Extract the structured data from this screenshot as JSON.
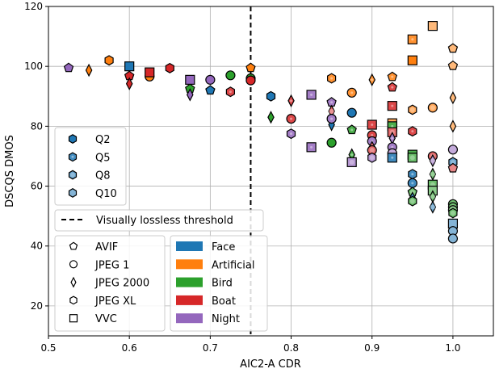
{
  "chart_data": {
    "type": "scatter",
    "xlabel": "AIC2-A CDR",
    "ylabel": "DSCQS DMOS",
    "xlim": [
      0.5,
      1.05
    ],
    "ylim": [
      10,
      120
    ],
    "xticks": [
      "0.5",
      "0.6",
      "0.7",
      "0.8",
      "0.9",
      "1.0"
    ],
    "yticks": [
      "20",
      "40",
      "60",
      "80",
      "100",
      "120"
    ],
    "grid": true,
    "threshold": {
      "x": 0.75,
      "label": "Visually lossless threshold"
    },
    "quality_legend": [
      "Q2",
      "Q5",
      "Q8",
      "Q10"
    ],
    "codec_legend": [
      {
        "key": "pentagon",
        "label": "AVIF"
      },
      {
        "key": "circle",
        "label": "JPEG 1"
      },
      {
        "key": "diamond",
        "label": "JPEG 2000"
      },
      {
        "key": "hexagon",
        "label": "JPEG XL"
      },
      {
        "key": "square",
        "label": "VVC"
      }
    ],
    "image_legend": [
      {
        "label": "Face",
        "color": "#1f77b4"
      },
      {
        "label": "Artificial",
        "color": "#ff7f0e"
      },
      {
        "label": "Bird",
        "color": "#2ca02c"
      },
      {
        "label": "Boat",
        "color": "#d62728"
      },
      {
        "label": "Night",
        "color": "#9467bd"
      }
    ],
    "points_fields": [
      "cdr",
      "dmos",
      "codec",
      "image",
      "quality"
    ],
    "points": [
      [
        0.525,
        99.5,
        "pentagon",
        "Night",
        "Q2"
      ],
      [
        0.55,
        98.7,
        "diamond",
        "Artificial",
        "Q2"
      ],
      [
        0.575,
        102,
        "hexagon",
        "Artificial",
        "Q2"
      ],
      [
        0.6,
        100,
        "square",
        "Face",
        "Q2"
      ],
      [
        0.6,
        96.8,
        "pentagon",
        "Boat",
        "Q2"
      ],
      [
        0.6,
        94.2,
        "diamond",
        "Boat",
        "Q2"
      ],
      [
        0.625,
        96.6,
        "circle",
        "Artificial",
        "Q2"
      ],
      [
        0.625,
        98,
        "square",
        "Boat",
        "Q2"
      ],
      [
        0.65,
        99.4,
        "hexagon",
        "Boat",
        "Q2"
      ],
      [
        0.675,
        92.5,
        "pentagon",
        "Bird",
        "Q2"
      ],
      [
        0.675,
        90.5,
        "diamond",
        "Night",
        "Q2"
      ],
      [
        0.675,
        95.5,
        "square",
        "Night",
        "Q2"
      ],
      [
        0.7,
        95.5,
        "circle",
        "Night",
        "Q2"
      ],
      [
        0.7,
        92,
        "pentagon",
        "Face",
        "Q2"
      ],
      [
        0.725,
        97,
        "circle",
        "Bird",
        "Q2"
      ],
      [
        0.725,
        91.5,
        "hexagon",
        "Boat",
        "Q5"
      ],
      [
        0.75,
        99.5,
        "pentagon",
        "Artificial",
        "Q2"
      ],
      [
        0.75,
        96,
        "circle",
        "Bird",
        "Q2"
      ],
      [
        0.75,
        95.3,
        "circle",
        "Boat",
        "Q2"
      ],
      [
        0.775,
        90,
        "hexagon",
        "Face",
        "Q2"
      ],
      [
        0.775,
        83,
        "diamond",
        "Bird",
        "Q2"
      ],
      [
        0.8,
        88.5,
        "diamond",
        "Boat",
        "Q5"
      ],
      [
        0.8,
        82.5,
        "circle",
        "Boat",
        "Q5"
      ],
      [
        0.8,
        77.5,
        "hexagon",
        "Night",
        "Q5"
      ],
      [
        0.825,
        90.5,
        "square",
        "Night",
        "Q5"
      ],
      [
        0.825,
        73,
        "square",
        "Night",
        "Q5"
      ],
      [
        0.85,
        96,
        "hexagon",
        "Artificial",
        "Q5"
      ],
      [
        0.85,
        88,
        "pentagon",
        "Night",
        "Q5"
      ],
      [
        0.85,
        85,
        "diamond",
        "Boat",
        "Q8"
      ],
      [
        0.85,
        80.5,
        "diamond",
        "Face",
        "Q2"
      ],
      [
        0.85,
        82.5,
        "circle",
        "Night",
        "Q5"
      ],
      [
        0.85,
        74.5,
        "circle",
        "Bird",
        "Q2"
      ],
      [
        0.875,
        91.2,
        "circle",
        "Artificial",
        "Q5"
      ],
      [
        0.875,
        84.5,
        "circle",
        "Face",
        "Q2"
      ],
      [
        0.875,
        78.8,
        "pentagon",
        "Bird",
        "Q5"
      ],
      [
        0.875,
        70.5,
        "diamond",
        "Bird",
        "Q5"
      ],
      [
        0.875,
        68,
        "square",
        "Night",
        "Q8"
      ],
      [
        0.9,
        95.5,
        "diamond",
        "Artificial",
        "Q5"
      ],
      [
        0.9,
        80.5,
        "square",
        "Boat",
        "Q5"
      ],
      [
        0.9,
        77,
        "circle",
        "Boat",
        "Q5"
      ],
      [
        0.9,
        75,
        "circle",
        "Night",
        "Q5"
      ],
      [
        0.9,
        73,
        "diamond",
        "Boat",
        "Q8"
      ],
      [
        0.9,
        72,
        "circle",
        "Boat",
        "Q8"
      ],
      [
        0.9,
        69.5,
        "hexagon",
        "Night",
        "Q8"
      ],
      [
        0.925,
        96.5,
        "pentagon",
        "Artificial",
        "Q5"
      ],
      [
        0.925,
        93,
        "pentagon",
        "Boat",
        "Q5"
      ],
      [
        0.925,
        86.8,
        "square",
        "Boat",
        "Q5"
      ],
      [
        0.925,
        81,
        "square",
        "Artificial",
        "Q8"
      ],
      [
        0.925,
        80,
        "square",
        "Bird",
        "Q5"
      ],
      [
        0.925,
        78,
        "square",
        "Boat",
        "Q8"
      ],
      [
        0.925,
        76,
        "diamond",
        "Night",
        "Q5"
      ],
      [
        0.925,
        73,
        "circle",
        "Night",
        "Q5"
      ],
      [
        0.925,
        71,
        "circle",
        "Night",
        "Q10"
      ],
      [
        0.925,
        69.5,
        "square",
        "Face",
        "Q5"
      ],
      [
        0.95,
        109,
        "square",
        "Artificial",
        "Q5"
      ],
      [
        0.95,
        102,
        "square",
        "Artificial",
        "Q2"
      ],
      [
        0.95,
        85.5,
        "hexagon",
        "Artificial",
        "Q8"
      ],
      [
        0.95,
        78.3,
        "hexagon",
        "Boat",
        "Q5"
      ],
      [
        0.95,
        70.5,
        "square",
        "Bird",
        "Q5"
      ],
      [
        0.95,
        69.5,
        "square",
        "Bird",
        "Q8"
      ],
      [
        0.95,
        64,
        "hexagon",
        "Face",
        "Q5"
      ],
      [
        0.95,
        61,
        "circle",
        "Face",
        "Q5"
      ],
      [
        0.95,
        58,
        "pentagon",
        "Bird",
        "Q8"
      ],
      [
        0.95,
        56,
        "diamond",
        "Face",
        "Q5"
      ],
      [
        0.95,
        55,
        "hexagon",
        "Bird",
        "Q8"
      ],
      [
        0.975,
        113.5,
        "square",
        "Artificial",
        "Q10"
      ],
      [
        0.975,
        86.2,
        "circle",
        "Artificial",
        "Q8"
      ],
      [
        0.975,
        70,
        "circle",
        "Boat",
        "Q8"
      ],
      [
        0.975,
        68.5,
        "diamond",
        "Night",
        "Q8"
      ],
      [
        0.975,
        64,
        "diamond",
        "Bird",
        "Q8"
      ],
      [
        0.975,
        60.5,
        "square",
        "Bird",
        "Q8"
      ],
      [
        0.975,
        58.5,
        "square",
        "Bird",
        "Q10"
      ],
      [
        0.975,
        56.5,
        "diamond",
        "Bird",
        "Q8"
      ],
      [
        0.975,
        53,
        "diamond",
        "Face",
        "Q8"
      ],
      [
        1.0,
        106,
        "pentagon",
        "Artificial",
        "Q10"
      ],
      [
        1.0,
        100.2,
        "pentagon",
        "Artificial",
        "Q10"
      ],
      [
        1.0,
        89.5,
        "diamond",
        "Artificial",
        "Q10"
      ],
      [
        1.0,
        80,
        "diamond",
        "Artificial",
        "Q10"
      ],
      [
        1.0,
        72.2,
        "circle",
        "Night",
        "Q10"
      ],
      [
        1.0,
        68,
        "hexagon",
        "Face",
        "Q8"
      ],
      [
        1.0,
        66,
        "pentagon",
        "Boat",
        "Q10"
      ],
      [
        1.0,
        54,
        "circle",
        "Bird",
        "Q8"
      ],
      [
        1.0,
        53,
        "circle",
        "Bird",
        "Q8"
      ],
      [
        1.0,
        52,
        "circle",
        "Bird",
        "Q10"
      ],
      [
        1.0,
        51,
        "hexagon",
        "Bird",
        "Q8"
      ],
      [
        1.0,
        47.5,
        "square",
        "Face",
        "Q10"
      ],
      [
        1.0,
        45,
        "circle",
        "Face",
        "Q10"
      ],
      [
        1.0,
        42.5,
        "circle",
        "Face",
        "Q10"
      ]
    ]
  }
}
